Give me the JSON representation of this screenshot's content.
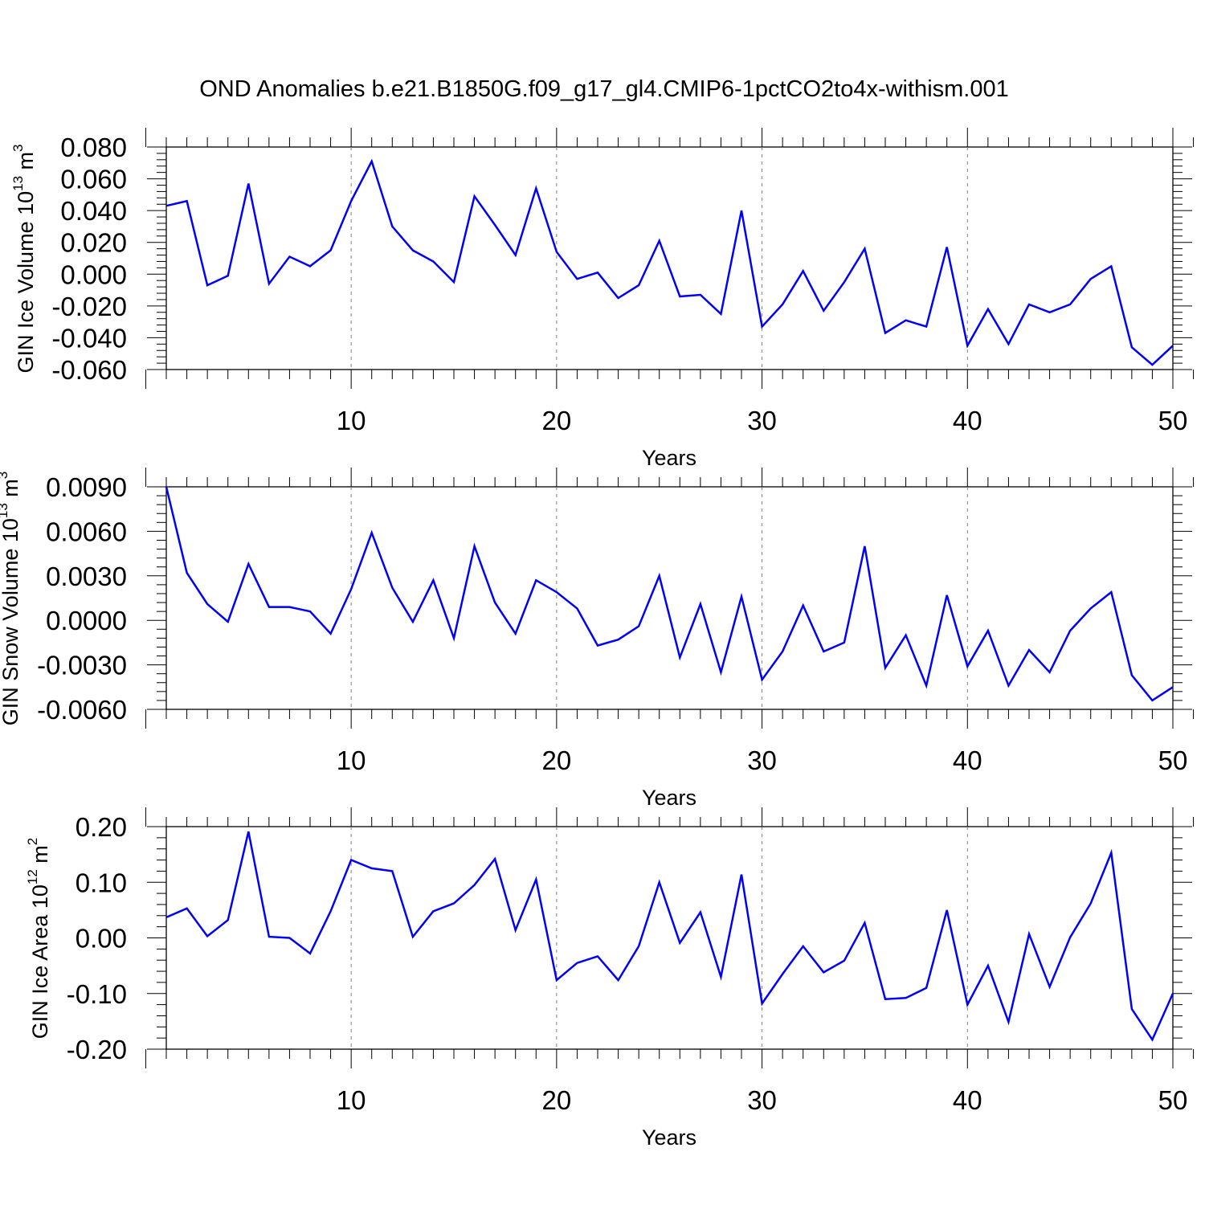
{
  "page_title": "OND Anomalies b.e21.B1850G.f09_g17_gl4.CMIP6-1pctCO2to4x-withism.001",
  "colors": {
    "line": "#0000ff",
    "axis": "#000000",
    "grid": "#808080",
    "background": "#ffffff"
  },
  "chart_data": [
    {
      "type": "line",
      "ylabel": {
        "text": "GIN Ice Volume 10",
        "exponent": "13",
        "unit": " m",
        "unit_exponent": "3"
      },
      "xlabel": "Years",
      "xlim": [
        1,
        50
      ],
      "ylim": [
        -0.06,
        0.08
      ],
      "x_ticks": [
        "10",
        "20",
        "30",
        "40",
        "50"
      ],
      "y_ticks": [
        "0.080",
        "0.060",
        "0.040",
        "0.020",
        "0.000",
        "-0.020",
        "-0.040",
        "-0.060"
      ],
      "grid": "vertical dashed at 10, 20, 30, 40",
      "series": [
        {
          "values": [
            0.043,
            0.046,
            -0.007,
            -0.001,
            0.057,
            -0.006,
            0.011,
            0.005,
            0.015,
            0.046,
            0.071,
            0.03,
            0.015,
            0.008,
            -0.005,
            0.049,
            0.031,
            0.012,
            0.054,
            0.014,
            -0.003,
            0.001,
            -0.015,
            -0.007,
            0.021,
            -0.014,
            -0.013,
            -0.025,
            0.04,
            -0.033,
            -0.019,
            0.002,
            -0.023,
            -0.005,
            0.016,
            -0.037,
            -0.029,
            -0.033,
            0.017,
            -0.045,
            -0.022,
            -0.044,
            -0.019,
            -0.024,
            -0.019,
            -0.003,
            0.005,
            -0.046,
            -0.057,
            -0.045
          ]
        }
      ]
    },
    {
      "type": "line",
      "ylabel": {
        "text": "GIN Snow Volume 10",
        "exponent": "13",
        "unit": " m",
        "unit_exponent": "3"
      },
      "xlabel": "Years",
      "xlim": [
        1,
        50
      ],
      "ylim": [
        -0.006,
        0.009
      ],
      "x_ticks": [
        "10",
        "20",
        "30",
        "40",
        "50"
      ],
      "y_ticks": [
        "0.0090",
        "0.0060",
        "0.0030",
        "0.0000",
        "-0.0030",
        "-0.0060"
      ],
      "grid": "vertical dashed at 10, 20, 30, 40",
      "series": [
        {
          "values": [
            0.009,
            0.0032,
            0.0011,
            -0.0001,
            0.0038,
            0.0009,
            0.0009,
            0.0006,
            -0.0009,
            0.0021,
            0.0059,
            0.0022,
            -0.0001,
            0.0027,
            -0.0012,
            0.005,
            0.0012,
            -0.0009,
            0.0027,
            0.0019,
            0.0008,
            -0.0017,
            -0.0013,
            -0.0004,
            0.003,
            -0.0025,
            0.0011,
            -0.0035,
            0.0016,
            -0.004,
            -0.0021,
            0.001,
            -0.0021,
            -0.0015,
            0.005,
            -0.0032,
            -0.001,
            -0.0044,
            0.0017,
            -0.0031,
            -0.0007,
            -0.0044,
            -0.002,
            -0.0035,
            -0.0007,
            0.0008,
            0.0019,
            -0.0037,
            -0.0054,
            -0.0045
          ]
        }
      ]
    },
    {
      "type": "line",
      "ylabel": {
        "text": "GIN Ice Area 10",
        "exponent": "12",
        "unit": " m",
        "unit_exponent": "2"
      },
      "xlabel": "Years",
      "xlim": [
        1,
        50
      ],
      "ylim": [
        -0.2,
        0.2
      ],
      "x_ticks": [
        "10",
        "20",
        "30",
        "40",
        "50"
      ],
      "y_ticks": [
        "0.20",
        "0.10",
        "0.00",
        "-0.10",
        "-0.20"
      ],
      "grid": "vertical dashed at 10, 20, 30, 40",
      "series": [
        {
          "values": [
            0.037,
            0.053,
            0.003,
            0.032,
            0.191,
            0.002,
            0.0,
            -0.028,
            0.048,
            0.14,
            0.125,
            0.12,
            0.002,
            0.048,
            0.062,
            0.095,
            0.142,
            0.014,
            0.105,
            -0.076,
            -0.045,
            -0.033,
            -0.076,
            -0.015,
            0.1,
            -0.009,
            0.046,
            -0.07,
            0.114,
            -0.118,
            -0.065,
            -0.015,
            -0.062,
            -0.041,
            0.027,
            -0.11,
            -0.108,
            -0.09,
            0.05,
            -0.12,
            -0.05,
            -0.151,
            0.007,
            -0.088,
            0.001,
            0.062,
            0.153,
            -0.128,
            -0.183,
            -0.1
          ]
        }
      ]
    }
  ]
}
